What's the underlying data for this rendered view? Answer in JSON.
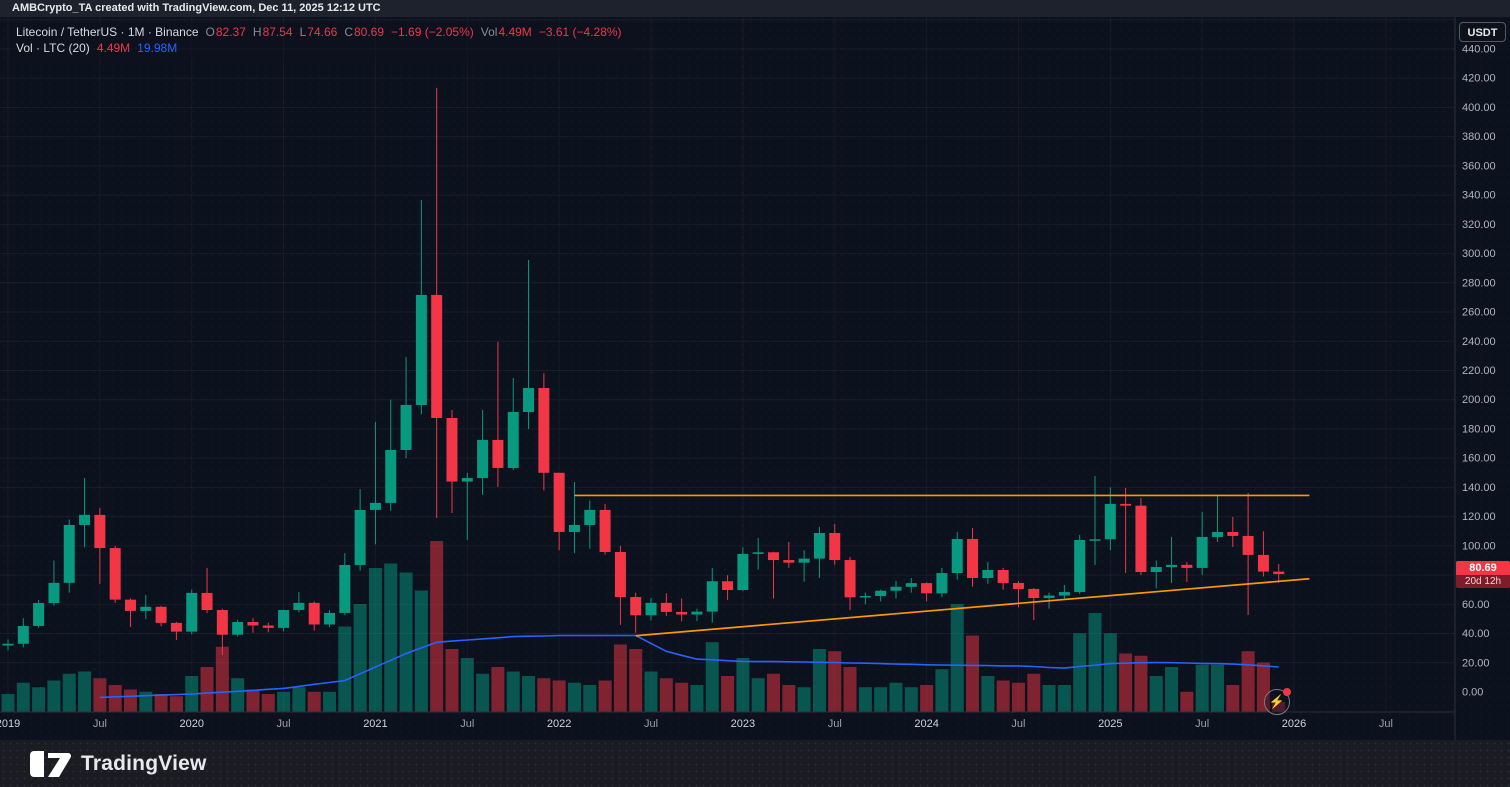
{
  "top_bar": {
    "title": "AMBCrypto_TA created with TradingView.com, Dec 11, 2025 12:12 UTC"
  },
  "legend": {
    "row1": [
      {
        "text": "Litecoin / TetherUS · 1M · Binance",
        "color": "title",
        "tight": false
      },
      {
        "text": "O",
        "color": "label",
        "tight": true
      },
      {
        "text": "82.37",
        "color": "down",
        "tight": false
      },
      {
        "text": "H",
        "color": "label",
        "tight": true
      },
      {
        "text": "87.54",
        "color": "down",
        "tight": false
      },
      {
        "text": "L",
        "color": "label",
        "tight": true
      },
      {
        "text": "74.66",
        "color": "down",
        "tight": false
      },
      {
        "text": "C",
        "color": "label",
        "tight": true
      },
      {
        "text": "80.69",
        "color": "down",
        "tight": false
      },
      {
        "text": "−1.69 (−2.05%)",
        "color": "down",
        "tight": false
      },
      {
        "text": "Vol",
        "color": "label",
        "tight": true
      },
      {
        "text": "4.49M",
        "color": "down",
        "tight": false
      },
      {
        "text": "−3.61 (−4.28%)",
        "color": "down",
        "tight": false
      }
    ],
    "row2": [
      {
        "text": "Vol · LTC (20)",
        "color": "title",
        "tight": false
      },
      {
        "text": "4.49M",
        "color": "down",
        "tight": false
      },
      {
        "text": "19.98M",
        "color": "blue",
        "tight": false
      }
    ]
  },
  "price_axis": {
    "currency_button": "USDT",
    "ticks": [
      0,
      20,
      40,
      60,
      80,
      100,
      120,
      140,
      160,
      180,
      200,
      220,
      240,
      260,
      280,
      300,
      320,
      340,
      360,
      380,
      400,
      420,
      440
    ],
    "last_price_label": {
      "price": "80.69",
      "countdown": "20d 12h"
    }
  },
  "time_axis": {
    "labels": [
      {
        "text": "2019",
        "i": 0
      },
      {
        "text": "Jul",
        "i": 6
      },
      {
        "text": "2020",
        "i": 12
      },
      {
        "text": "Jul",
        "i": 18
      },
      {
        "text": "2021",
        "i": 24
      },
      {
        "text": "Jul",
        "i": 30
      },
      {
        "text": "2022",
        "i": 36
      },
      {
        "text": "Jul",
        "i": 42
      },
      {
        "text": "2023",
        "i": 48
      },
      {
        "text": "Jul",
        "i": 54
      },
      {
        "text": "2024",
        "i": 60
      },
      {
        "text": "Jul",
        "i": 66
      },
      {
        "text": "2025",
        "i": 72
      },
      {
        "text": "Jul",
        "i": 78
      },
      {
        "text": "2026",
        "i": 84
      },
      {
        "text": "Jul",
        "i": 90
      }
    ]
  },
  "bottom_bar": {
    "brand": "TradingView"
  },
  "colors": {
    "up": "#089981",
    "down": "#f23645",
    "volume_ma": "#2962ff",
    "drawing": "#FF9800",
    "axis_text": "#b2b5be",
    "background": "#0c111e",
    "topbar_bg": "#1e222d"
  },
  "chart_data": {
    "type": "candlestick+volume",
    "title": "Litecoin / TetherUS · 1M · Binance",
    "ylabel": "Price (USDT)",
    "ylim": [
      0,
      462
    ],
    "y_tick_step": 20,
    "volume_unit": "M",
    "grid": "6-month vertical, 20-USDT horizontal",
    "legend_position": "top-left",
    "months": [
      "2019-01",
      "2019-02",
      "2019-03",
      "2019-04",
      "2019-05",
      "2019-06",
      "2019-07",
      "2019-08",
      "2019-09",
      "2019-10",
      "2019-11",
      "2019-12",
      "2020-01",
      "2020-02",
      "2020-03",
      "2020-04",
      "2020-05",
      "2020-06",
      "2020-07",
      "2020-08",
      "2020-09",
      "2020-10",
      "2020-11",
      "2020-12",
      "2021-01",
      "2021-02",
      "2021-03",
      "2021-04",
      "2021-05",
      "2021-06",
      "2021-07",
      "2021-08",
      "2021-09",
      "2021-10",
      "2021-11",
      "2021-12",
      "2022-01",
      "2022-02",
      "2022-03",
      "2022-04",
      "2022-05",
      "2022-06",
      "2022-07",
      "2022-08",
      "2022-09",
      "2022-10",
      "2022-11",
      "2022-12",
      "2023-01",
      "2023-02",
      "2023-03",
      "2023-04",
      "2023-05",
      "2023-06",
      "2023-07",
      "2023-08",
      "2023-09",
      "2023-10",
      "2023-11",
      "2023-12",
      "2024-01",
      "2024-02",
      "2024-03",
      "2024-04",
      "2024-05",
      "2024-06",
      "2024-07",
      "2024-08",
      "2024-09",
      "2024-10",
      "2024-11",
      "2024-12",
      "2025-01",
      "2025-02",
      "2025-03",
      "2025-04",
      "2025-05",
      "2025-06",
      "2025-07",
      "2025-08",
      "2025-09",
      "2025-10",
      "2025-11",
      "2025-12"
    ],
    "open": [
      31.8,
      33,
      45.2,
      60.9,
      74.7,
      114.3,
      121.2,
      98.5,
      63.2,
      55.5,
      58.3,
      47.3,
      41.3,
      67.8,
      56.1,
      39.2,
      47.9,
      45.5,
      43.9,
      56.1,
      61,
      46.2,
      54.1,
      86.9,
      124.6,
      129.4,
      165.6,
      196.4,
      271.7,
      187.5,
      144,
      146.4,
      172.5,
      153.3,
      191.6,
      208,
      150,
      109.5,
      114.3,
      124.6,
      95.8,
      65,
      52.5,
      61,
      54.8,
      53,
      55,
      75.8,
      69.8,
      94.5,
      95.6,
      90.3,
      88.5,
      91.3,
      108.8,
      90.3,
      64.8,
      65.7,
      69.3,
      72,
      74.5,
      67.5,
      81.4,
      104.7,
      78,
      83.5,
      74.6,
      70.5,
      64.3,
      66,
      68.4,
      104,
      104.5,
      128.7,
      127.5,
      82.1,
      85.5,
      87,
      84.9,
      106.1,
      109.5,
      106.8,
      93.8,
      82.37
    ],
    "high": [
      36,
      50.5,
      63,
      90,
      118,
      146.4,
      126,
      100,
      64,
      66.4,
      59,
      48,
      70,
      84.9,
      57,
      49.5,
      50.5,
      47.5,
      56.5,
      68.4,
      62,
      56,
      95,
      138.9,
      184.8,
      200,
      229.3,
      336.7,
      413.4,
      193,
      150,
      193,
      239.6,
      214.9,
      295.7,
      218,
      150,
      143.7,
      131,
      128.7,
      100,
      68,
      64.3,
      67.7,
      64,
      57,
      84.9,
      80,
      99.2,
      105.4,
      96,
      102.7,
      97,
      113,
      115,
      92.4,
      68,
      70,
      76,
      78,
      75,
      84.9,
      109.5,
      112.3,
      89,
      84.9,
      76,
      71.2,
      68,
      73.2,
      107.5,
      147.8,
      140,
      139.6,
      132.8,
      90,
      106,
      89,
      123.3,
      134.9,
      119.8,
      136.2,
      110,
      87.54
    ],
    "low": [
      28.5,
      30.5,
      44,
      59,
      68,
      99,
      74,
      61,
      44.5,
      50,
      45,
      35.6,
      39.5,
      54,
      25.3,
      38,
      40.5,
      40.8,
      41.5,
      54.5,
      42,
      44.5,
      52.5,
      83,
      101,
      124,
      160,
      190,
      119.1,
      122.5,
      104,
      134.9,
      140.3,
      151.9,
      180,
      138,
      97,
      95,
      98,
      94,
      45.9,
      40.5,
      49,
      52,
      48.3,
      48.5,
      47.5,
      63,
      69,
      83.7,
      64,
      85,
      75.5,
      78,
      87,
      56.1,
      60,
      62,
      64,
      68,
      62,
      65,
      77,
      72,
      74,
      70,
      58,
      49.2,
      57,
      63,
      67,
      86.9,
      97,
      81.4,
      80,
      71,
      74.6,
      75.3,
      80,
      102.7,
      99.2,
      52.7,
      79,
      74.66
    ],
    "close": [
      33,
      45.2,
      60.9,
      74.7,
      114.3,
      121.2,
      98.5,
      63.2,
      55.5,
      58.3,
      47.3,
      41.3,
      67.8,
      56.1,
      39.2,
      47.9,
      45.5,
      43.9,
      56.1,
      61,
      46.2,
      54.1,
      86.9,
      124.6,
      129.4,
      165.6,
      196.4,
      271.7,
      187.5,
      144,
      146.4,
      172.5,
      153.3,
      191.6,
      208,
      150,
      109.5,
      114.3,
      124.6,
      95.8,
      65,
      52.5,
      61,
      54.8,
      53,
      55,
      75.8,
      69.8,
      94.5,
      95.6,
      90.3,
      88.5,
      91.3,
      108.8,
      90.3,
      64.8,
      65.7,
      69.3,
      72,
      74.5,
      67.5,
      81.4,
      104.7,
      78,
      83.5,
      74.6,
      70.5,
      64.3,
      66,
      68.4,
      104,
      104.5,
      128.7,
      127.5,
      82.1,
      85.5,
      87,
      84.9,
      106.1,
      109.5,
      106.8,
      93.8,
      82.4,
      80.69
    ],
    "volume_m": [
      8,
      13,
      11,
      14,
      17,
      18,
      15,
      12,
      10,
      9,
      8,
      7,
      16,
      20,
      29,
      15,
      10,
      8,
      9,
      11,
      9,
      9,
      38,
      48,
      64,
      66,
      62,
      54,
      76,
      28,
      24,
      17,
      20,
      18,
      16,
      15,
      14,
      13,
      12,
      14,
      30,
      28,
      18,
      15,
      13,
      12,
      31,
      16,
      24,
      15,
      17,
      12,
      11,
      28,
      27,
      20,
      11,
      11,
      13,
      11,
      12,
      19,
      48,
      34,
      16,
      14,
      13,
      17,
      12,
      12,
      35,
      44,
      35,
      26,
      25,
      16,
      20,
      9,
      21,
      21,
      12,
      27,
      22,
      4.49
    ],
    "volume_ma_m": [
      null,
      null,
      null,
      null,
      null,
      null,
      6.5,
      6.75,
      7,
      7.25,
      7.5,
      7.75,
      8,
      8.4,
      8.8,
      9.2,
      9.6,
      10.1,
      10.5,
      11.4,
      12.3,
      13.1,
      14,
      17,
      20,
      23,
      26,
      28.5,
      31,
      31.5,
      32,
      32.5,
      33,
      33.5,
      33.7,
      33.8,
      34,
      34,
      34,
      34,
      34,
      34,
      30.5,
      27,
      25.2,
      23.5,
      23.2,
      22.8,
      22.5,
      22.4,
      22.4,
      22.3,
      22.2,
      22.1,
      22,
      21.8,
      21.7,
      21.5,
      21.3,
      21.2,
      21,
      20.9,
      20.8,
      20.7,
      20.6,
      20.5,
      20.5,
      20.2,
      19.8,
      19.5,
      20.2,
      20.8,
      21.5,
      21.7,
      21.9,
      22,
      21.9,
      21.8,
      21.6,
      21.5,
      21.3,
      21,
      20.5,
      19.98
    ],
    "trendlines": [
      {
        "name": "horizontal-resistance-line",
        "color": "#FF9800",
        "from": {
          "month": "2022-02",
          "price": 134.5
        },
        "to": {
          "month": "2026-02",
          "price": 134.5
        }
      },
      {
        "name": "ascending-support-line",
        "color": "#FF9800",
        "from": {
          "month": "2022-06",
          "price": 38.5
        },
        "to": {
          "month": "2026-02",
          "price": 77.5
        }
      }
    ]
  }
}
